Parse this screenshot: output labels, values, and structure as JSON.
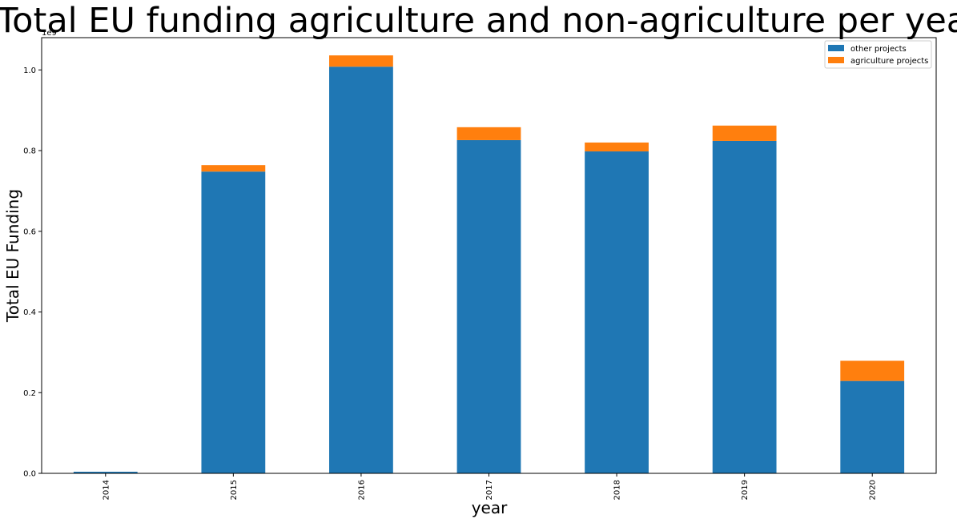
{
  "chart_data": {
    "type": "bar",
    "stacked": true,
    "title": "Total EU funding agriculture and non-agriculture per year",
    "xlabel": "year",
    "ylabel": "Total EU Funding",
    "y_offset_label": "1e9",
    "categories": [
      "2014",
      "2015",
      "2016",
      "2017",
      "2018",
      "2019",
      "2020"
    ],
    "series": [
      {
        "name": "other projects",
        "color": "#1f77b4",
        "values": [
          0.004,
          0.748,
          1.008,
          0.826,
          0.798,
          0.824,
          0.229
        ]
      },
      {
        "name": "agriculture projects",
        "color": "#ff7f0e",
        "values": [
          0.0,
          0.016,
          0.028,
          0.032,
          0.022,
          0.038,
          0.05
        ]
      }
    ],
    "ylim": [
      0,
      1.08
    ],
    "yticks": [
      "0.0",
      "0.2",
      "0.4",
      "0.6",
      "0.8",
      "1.0"
    ],
    "grid": false,
    "legend_position": "top-right"
  }
}
